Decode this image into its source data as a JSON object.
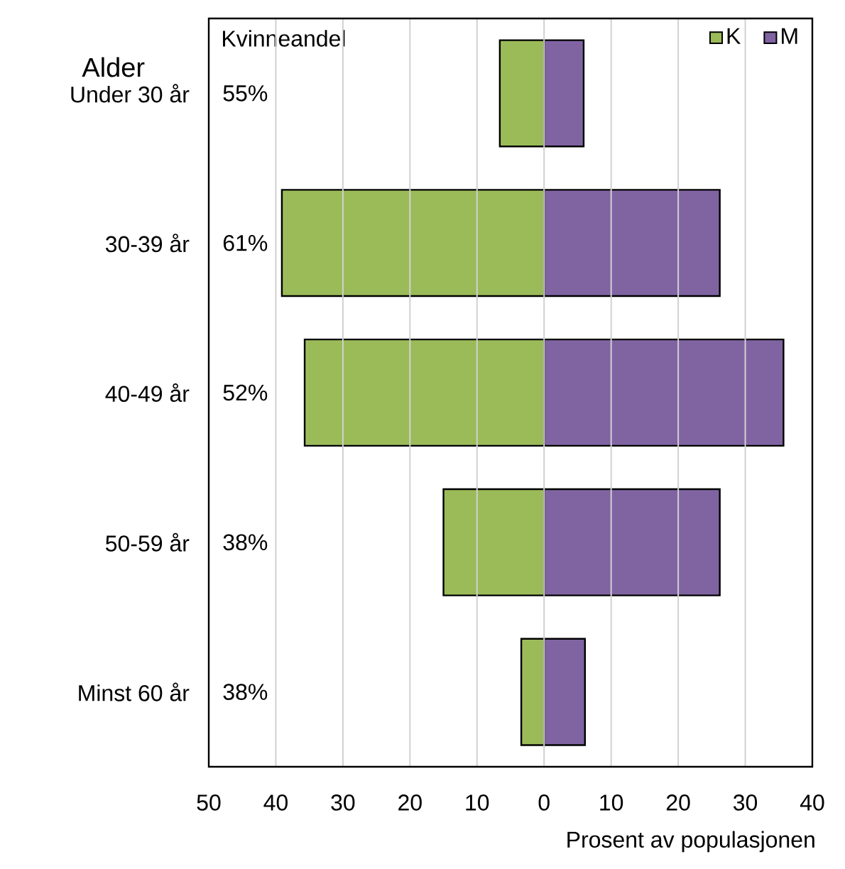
{
  "chart_data": {
    "type": "bar",
    "orientation": "horizontal",
    "stacked": true,
    "categories": [
      "Under 30 år",
      "30-39 år",
      "40-49 år",
      "50-59 år",
      "Minst 60 år"
    ],
    "series": [
      {
        "name": "K",
        "color": "#9bbb59",
        "values": [
          -6.6,
          -39.1,
          -35.7,
          -15.0,
          -3.4
        ]
      },
      {
        "name": "M",
        "color": "#8064a2",
        "values": [
          5.9,
          26.2,
          35.7,
          26.2,
          6.1
        ]
      }
    ],
    "xlim": [
      -50,
      40
    ],
    "xticks": [
      {
        "value": -50,
        "label": "50"
      },
      {
        "value": -40,
        "label": "40"
      },
      {
        "value": -30,
        "label": "30"
      },
      {
        "value": -20,
        "label": "20"
      },
      {
        "value": -10,
        "label": "10"
      },
      0,
      10,
      20,
      30,
      40
    ],
    "xlabel": "Prosent av populasjonen",
    "ylabel": "Alder",
    "annotations": [
      "Kvinneandel",
      "55%",
      "61%",
      "52%",
      "38%",
      "38%"
    ],
    "grid": "x",
    "legend": "top right"
  }
}
